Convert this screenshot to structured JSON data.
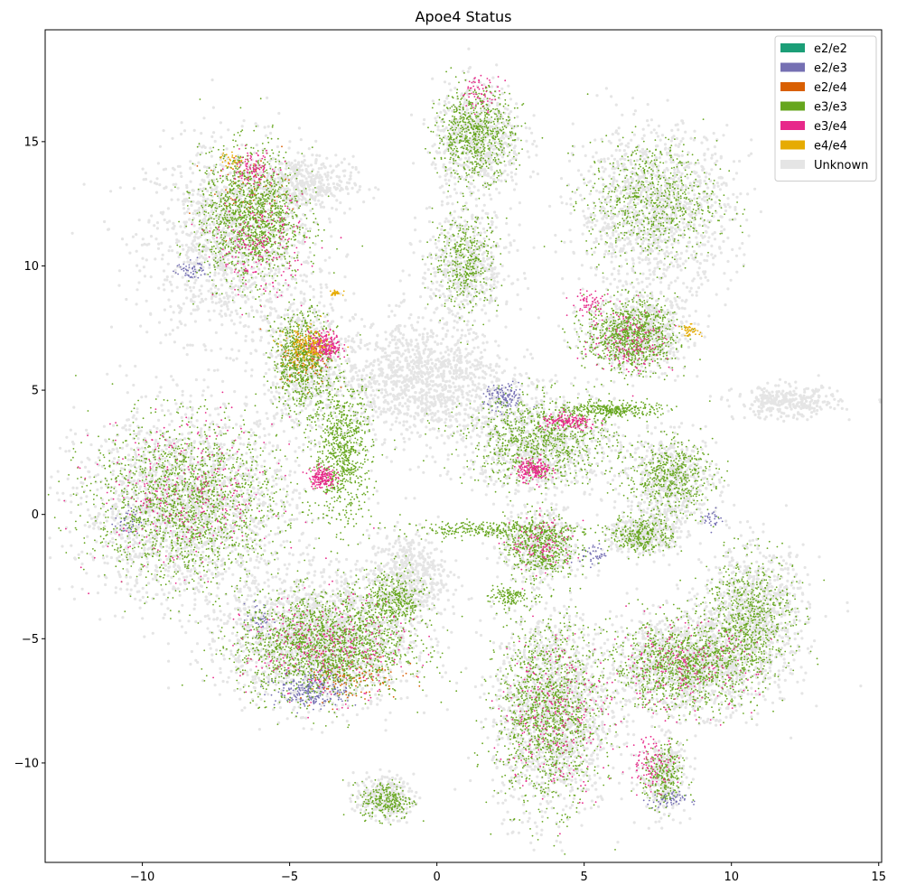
{
  "chart_data": {
    "type": "scatter",
    "title": "Apoe4 Status",
    "xlabel": "",
    "ylabel": "",
    "xlim": [
      -13.3,
      15.1
    ],
    "ylim": [
      -14.0,
      19.5
    ],
    "x_ticks": [
      -10,
      -5,
      0,
      5,
      10,
      15
    ],
    "x_tick_labels": [
      "−10",
      "−5",
      "0",
      "5",
      "10",
      "15"
    ],
    "y_ticks": [
      -10,
      -5,
      0,
      5,
      10,
      15
    ],
    "y_tick_labels": [
      "−10",
      "−5",
      "0",
      "5",
      "10",
      "15"
    ],
    "grid": false,
    "legend_position": "top-right",
    "series": [
      {
        "name": "e2/e2",
        "color": "#1b9e77",
        "regions": []
      },
      {
        "name": "e2/e3",
        "color": "#7570b3",
        "regions": [
          [
            -4.2,
            -7.0,
            1.1,
            0.7,
            260
          ],
          [
            2.3,
            4.7,
            0.6,
            0.5,
            120
          ],
          [
            -8.3,
            9.8,
            0.5,
            0.4,
            60
          ],
          [
            7.8,
            -11.5,
            0.6,
            0.3,
            60
          ],
          [
            -10.5,
            -0.3,
            0.4,
            0.6,
            40
          ],
          [
            -6.0,
            -4.2,
            0.4,
            0.6,
            40
          ],
          [
            5.3,
            -1.6,
            0.4,
            0.4,
            40
          ],
          [
            9.4,
            -0.2,
            0.3,
            0.4,
            30
          ]
        ]
      },
      {
        "name": "e2/e4",
        "color": "#d95f02",
        "regions": [
          [
            -4.5,
            6.3,
            0.8,
            1.0,
            140
          ],
          [
            -3.0,
            -6.5,
            1.6,
            0.9,
            120
          ],
          [
            -6.4,
            13.0,
            1.3,
            1.2,
            60
          ]
        ]
      },
      {
        "name": "e3/e3",
        "color": "#66a61e",
        "regions": [
          [
            -6.3,
            12.0,
            1.6,
            2.4,
            1400
          ],
          [
            -4.6,
            6.2,
            0.9,
            1.8,
            700
          ],
          [
            -3.2,
            2.5,
            0.9,
            2.6,
            800
          ],
          [
            -8.5,
            0.5,
            2.9,
            2.9,
            1700
          ],
          [
            -3.9,
            -5.3,
            2.6,
            1.9,
            1700
          ],
          [
            -1.5,
            -3.5,
            1.0,
            1.2,
            400
          ],
          [
            1.3,
            15.3,
            1.2,
            1.6,
            700
          ],
          [
            1.0,
            10.2,
            1.0,
            1.8,
            400
          ],
          [
            3.5,
            3.0,
            2.3,
            1.6,
            900
          ],
          [
            6.0,
            4.2,
            1.4,
            0.3,
            300
          ],
          [
            6.6,
            7.2,
            1.4,
            1.3,
            900
          ],
          [
            7.3,
            12.6,
            2.0,
            2.2,
            700
          ],
          [
            3.5,
            -1.3,
            1.1,
            1.2,
            500
          ],
          [
            3.8,
            -8.0,
            1.6,
            3.3,
            1300
          ],
          [
            8.4,
            -6.1,
            2.3,
            1.6,
            1100
          ],
          [
            10.6,
            -4.1,
            1.4,
            2.2,
            700
          ],
          [
            7.9,
            1.5,
            1.3,
            1.3,
            500
          ],
          [
            7.0,
            -0.8,
            1.0,
            0.7,
            300
          ],
          [
            7.7,
            -10.6,
            0.6,
            1.2,
            250
          ],
          [
            -1.7,
            -11.5,
            0.8,
            0.7,
            250
          ],
          [
            1.8,
            -0.6,
            2.8,
            0.3,
            300
          ],
          [
            2.4,
            -3.3,
            0.6,
            0.4,
            120
          ]
        ]
      },
      {
        "name": "e3/e4",
        "color": "#e7298a",
        "regions": [
          [
            -3.8,
            6.8,
            0.5,
            0.5,
            220
          ],
          [
            -3.9,
            1.5,
            0.4,
            0.4,
            160
          ],
          [
            3.3,
            1.8,
            0.5,
            0.4,
            180
          ],
          [
            4.5,
            3.7,
            0.9,
            0.3,
            140
          ],
          [
            -6.3,
            14.0,
            0.7,
            0.6,
            100
          ],
          [
            -8.5,
            0.8,
            2.7,
            2.7,
            300
          ],
          [
            -3.8,
            -5.4,
            2.5,
            1.8,
            300
          ],
          [
            7.3,
            -10.0,
            0.7,
            1.0,
            100
          ],
          [
            1.5,
            17.0,
            0.6,
            0.6,
            60
          ],
          [
            4.0,
            -8.0,
            1.6,
            3.0,
            250
          ],
          [
            8.3,
            -6.2,
            2.3,
            1.6,
            220
          ],
          [
            5.2,
            8.5,
            0.6,
            0.5,
            60
          ],
          [
            6.6,
            7.0,
            1.3,
            1.2,
            150
          ],
          [
            3.6,
            -1.2,
            1.0,
            1.0,
            100
          ],
          [
            -6.0,
            10.8,
            1.4,
            1.8,
            200
          ]
        ]
      },
      {
        "name": "e4/e4",
        "color": "#e6ab02",
        "regions": [
          [
            -4.4,
            6.7,
            0.7,
            0.7,
            160
          ],
          [
            8.6,
            7.4,
            0.3,
            0.2,
            40
          ],
          [
            -3.4,
            8.9,
            0.3,
            0.1,
            30
          ],
          [
            -7.0,
            14.3,
            0.3,
            0.3,
            30
          ]
        ]
      },
      {
        "name": "Unknown",
        "color": "#e5e5e5",
        "regions": [
          [
            -7.0,
            11.0,
            2.6,
            3.6,
            1300
          ],
          [
            -4.6,
            13.3,
            1.6,
            1.0,
            400
          ],
          [
            -0.6,
            5.4,
            2.8,
            2.2,
            1200
          ],
          [
            -4.5,
            6.0,
            1.3,
            2.5,
            500
          ],
          [
            -8.5,
            0.3,
            3.3,
            3.4,
            1900
          ],
          [
            -4.0,
            -5.0,
            2.8,
            2.4,
            1800
          ],
          [
            -1.0,
            -2.5,
            1.2,
            1.6,
            500
          ],
          [
            1.4,
            15.1,
            1.4,
            2.0,
            600
          ],
          [
            1.0,
            10.0,
            1.4,
            2.2,
            500
          ],
          [
            7.4,
            12.3,
            2.4,
            2.9,
            1200
          ],
          [
            11.9,
            4.5,
            1.6,
            0.6,
            300
          ],
          [
            3.5,
            2.9,
            2.4,
            1.9,
            800
          ],
          [
            6.8,
            7.3,
            1.6,
            1.4,
            600
          ],
          [
            3.5,
            -1.3,
            1.2,
            1.3,
            400
          ],
          [
            3.9,
            -8.0,
            1.8,
            3.7,
            1400
          ],
          [
            8.5,
            -6.0,
            2.5,
            1.8,
            1200
          ],
          [
            10.8,
            -4.0,
            1.6,
            2.4,
            800
          ],
          [
            8.0,
            1.4,
            1.4,
            1.6,
            500
          ],
          [
            7.0,
            -0.8,
            1.1,
            0.8,
            300
          ],
          [
            7.7,
            -10.5,
            0.7,
            1.4,
            300
          ],
          [
            -1.8,
            -11.4,
            0.9,
            0.8,
            250
          ]
        ]
      }
    ]
  }
}
